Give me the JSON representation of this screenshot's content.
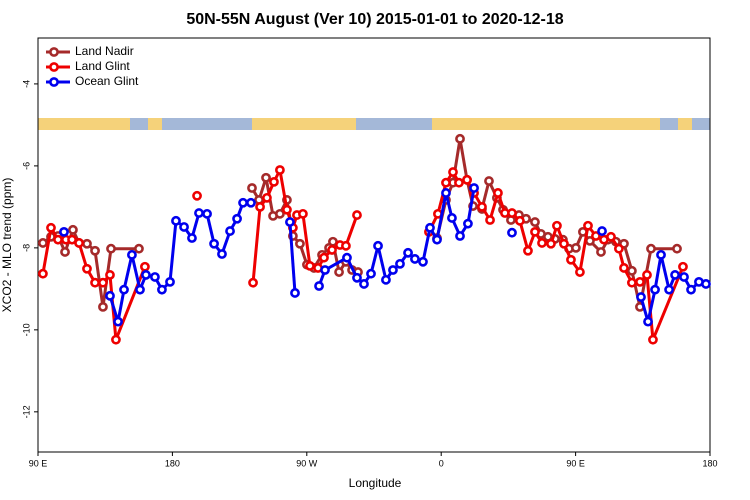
{
  "chart_data": {
    "type": "line",
    "title": "50N-55N August (Ver 10)   2015-01-01 to 2020-12-18",
    "x_label": "Longitude",
    "y_label": "XCO2 - MLO trend (ppm)",
    "xlim": [
      90,
      540
    ],
    "xticks": [
      {
        "value": 90,
        "label": "90 E"
      },
      180,
      {
        "value": 270,
        "label": "90 W"
      },
      {
        "value": 360,
        "label": "0"
      },
      {
        "value": 450,
        "label": "90 E"
      },
      {
        "value": 540,
        "label": "180"
      }
    ],
    "ylim": [
      -12.98,
      -2.88
    ],
    "yticks": [
      -4,
      -6,
      -8,
      -10,
      -12
    ],
    "legend": "top-left",
    "series": [
      {
        "name": "Land Nadir",
        "color": "#a52a2a",
        "x": [
          93.3,
          98.7,
          103.4,
          108.1,
          113.4,
          117.5,
          122.8,
          128.2,
          133.5,
          138.9,
          157.6,
          null,
          233.3,
          238.0,
          242.7,
          247.4,
          252.0,
          256.7,
          260.7,
          265.4,
          270.1,
          274.8,
          280.2,
          284.9,
          287.5,
          291.6,
          296.2,
          300.3,
          304.3,
          null,
          357.2,
          363.2,
          367.9,
          372.6,
          377.3,
          381.3,
          387.3,
          392.0,
          397.3,
          401.4,
          406.7,
          412.1,
          416.8,
          422.8,
          426.8,
          431.5,
          436.2,
          441.5,
          445.6,
          450.2,
          454.9,
          459.6,
          467.0,
          471.7,
          477.0,
          482.4,
          487.7,
          493.1,
          500.5,
          517.9
        ],
        "values": [
          -7.88,
          -7.73,
          -7.71,
          -8.1,
          -7.56,
          -7.88,
          -7.9,
          -8.07,
          -9.44,
          -8.02,
          -8.02,
          null,
          -6.54,
          -6.83,
          -6.29,
          -7.22,
          -7.17,
          -6.83,
          -7.71,
          -7.9,
          -8.41,
          -8.49,
          -8.17,
          -8.0,
          -7.85,
          -8.59,
          -8.34,
          -8.54,
          -8.59,
          null,
          -7.76,
          -6.83,
          -6.41,
          -5.34,
          -6.34,
          -6.98,
          -7.05,
          -6.37,
          -6.78,
          -7.07,
          -7.32,
          -7.2,
          -7.29,
          -7.37,
          -7.66,
          -7.73,
          -7.78,
          -7.8,
          -8.02,
          -8.0,
          -7.61,
          -7.83,
          -8.1,
          -7.8,
          -7.85,
          -7.9,
          -8.56,
          -9.44,
          -8.02,
          -8.02
        ]
      },
      {
        "name": "Land Glint",
        "color": "#ee0000",
        "x": [
          93.3,
          98.7,
          103.4,
          108.7,
          112.8,
          117.5,
          122.8,
          128.2,
          133.5,
          138.2,
          142.2,
          161.6,
          null,
          196.5,
          null,
          234.0,
          238.7,
          243.3,
          248.0,
          252.0,
          256.7,
          260.7,
          263.4,
          267.4,
          272.1,
          277.5,
          281.5,
          286.9,
          292.2,
          296.2,
          303.6,
          null,
          351.8,
          357.8,
          363.2,
          367.9,
          371.9,
          377.3,
          382.0,
          387.3,
          392.7,
          398.0,
          402.7,
          407.4,
          412.7,
          418.1,
          422.8,
          427.5,
          433.5,
          437.5,
          442.2,
          446.9,
          452.9,
          458.3,
          463.6,
          469.0,
          473.7,
          479.0,
          482.4,
          487.7,
          493.1,
          497.8,
          501.8,
          521.9
        ],
        "values": [
          -8.63,
          -7.51,
          -7.8,
          -7.8,
          -7.8,
          -7.88,
          -8.51,
          -8.85,
          -8.85,
          -8.66,
          -10.24,
          -8.46,
          null,
          -6.73,
          null,
          -8.85,
          -7.0,
          -6.78,
          -6.39,
          -6.1,
          -7.07,
          -7.51,
          -7.2,
          -7.17,
          -8.44,
          -8.49,
          -8.24,
          -8.05,
          -7.93,
          -7.95,
          -7.2,
          null,
          -7.61,
          -7.17,
          -6.41,
          -6.15,
          -6.41,
          -6.34,
          -6.66,
          -7.0,
          -7.32,
          -6.66,
          -7.15,
          -7.15,
          -7.34,
          -8.07,
          -7.61,
          -7.88,
          -7.9,
          -7.46,
          -7.9,
          -8.29,
          -8.59,
          -7.46,
          -7.71,
          -7.8,
          -7.73,
          -8.02,
          -8.49,
          -8.85,
          -8.83,
          -8.66,
          -10.24,
          -8.46
        ]
      },
      {
        "name": "Ocean Glint",
        "color": "#0000ee",
        "x": [
          107.4,
          null,
          138.2,
          143.6,
          147.6,
          152.9,
          158.3,
          162.3,
          168.3,
          173.0,
          178.4,
          182.4,
          187.8,
          193.1,
          197.8,
          203.2,
          207.9,
          213.2,
          218.6,
          223.3,
          227.3,
          232.6,
          null,
          258.7,
          262.1,
          null,
          278.2,
          282.2,
          296.9,
          303.6,
          308.3,
          313.0,
          317.7,
          323.0,
          327.7,
          332.4,
          337.8,
          342.4,
          347.8,
          352.5,
          357.2,
          363.2,
          367.2,
          372.6,
          377.9,
          382.0,
          null,
          407.4,
          null,
          467.7,
          null,
          493.8,
          498.5,
          503.2,
          507.2,
          512.6,
          516.6,
          522.6,
          527.3,
          532.6,
          537.3
        ],
        "values": [
          -7.61,
          null,
          -9.17,
          -9.8,
          -9.02,
          -8.17,
          -9.02,
          -8.66,
          -8.71,
          -9.02,
          -8.83,
          -7.34,
          -7.49,
          -7.76,
          -7.15,
          -7.17,
          -7.9,
          -8.15,
          -7.59,
          -7.29,
          -6.9,
          -6.9,
          null,
          -7.37,
          -9.1,
          null,
          -8.93,
          -8.54,
          -8.24,
          -8.73,
          -8.88,
          -8.63,
          -7.95,
          -8.78,
          -8.54,
          -8.39,
          -8.12,
          -8.27,
          -8.34,
          -7.51,
          -7.8,
          -6.66,
          -7.27,
          -7.71,
          -7.41,
          -6.54,
          null,
          -7.63,
          null,
          -7.59,
          null,
          -9.2,
          -9.8,
          -9.02,
          -8.17,
          -9.02,
          -8.66,
          -8.71,
          -9.02,
          -8.83,
          -8.88
        ]
      }
    ]
  }
}
